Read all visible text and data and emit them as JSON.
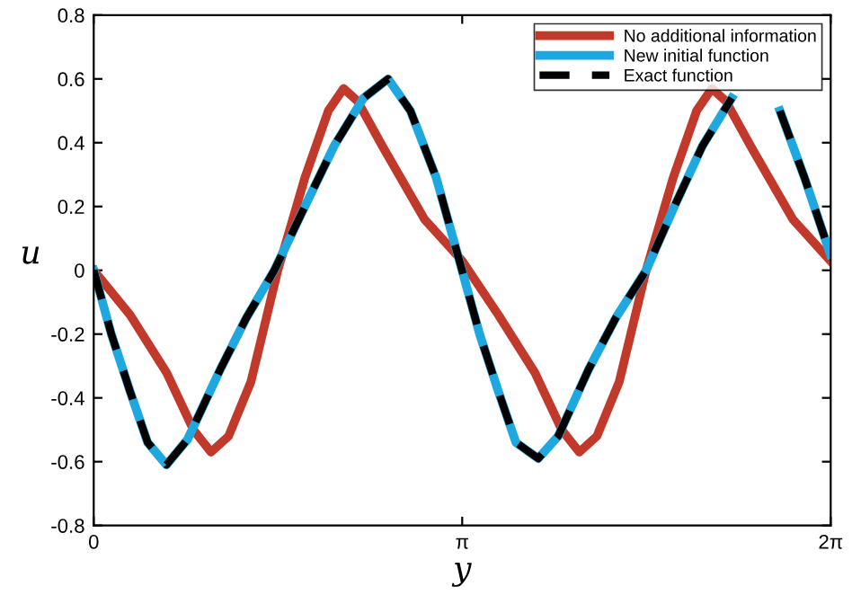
{
  "chart_data": {
    "type": "line",
    "xlabel": "y",
    "ylabel": "u",
    "xlim": [
      0,
      6.2832
    ],
    "ylim": [
      -0.8,
      0.8
    ],
    "xticks": [
      {
        "value": 0,
        "label": "0"
      },
      {
        "value": 3.1416,
        "label": "π"
      },
      {
        "value": 6.2832,
        "label": "2π"
      }
    ],
    "yticks": [
      {
        "value": -0.8,
        "label": "-0.8"
      },
      {
        "value": -0.6,
        "label": "-0.6"
      },
      {
        "value": -0.4,
        "label": "-0.4"
      },
      {
        "value": -0.2,
        "label": "-0.2"
      },
      0,
      0.2,
      0.4,
      0.6,
      0.8
    ],
    "legend": "top right",
    "grid": false,
    "series": [
      {
        "name": "No additional information",
        "color": "#c1392b",
        "line_style": "solid",
        "x": [
          0,
          0.31,
          0.62,
          0.85,
          1.0,
          1.15,
          1.34,
          1.57,
          1.8,
          2.0,
          2.13,
          2.25,
          2.46,
          2.82,
          3.14,
          3.45,
          3.76,
          3.99,
          4.14,
          4.29,
          4.48,
          4.71,
          4.94,
          5.14,
          5.27,
          5.39,
          5.6,
          5.96,
          6.28
        ],
        "values": [
          0,
          -0.14,
          -0.32,
          -0.5,
          -0.57,
          -0.52,
          -0.35,
          0,
          0.29,
          0.5,
          0.57,
          0.53,
          0.39,
          0.16,
          0.03,
          -0.14,
          -0.32,
          -0.5,
          -0.57,
          -0.52,
          -0.35,
          0,
          0.29,
          0.5,
          0.57,
          0.53,
          0.39,
          0.16,
          0.03
        ]
      },
      {
        "name": "New initial function",
        "color": "#1fa7e0",
        "line_style": "solid",
        "x": [
          0,
          0.15,
          0.31,
          0.46,
          0.62,
          0.8,
          1.08,
          1.3,
          1.54,
          1.8,
          2.05,
          2.3,
          2.51,
          2.7,
          2.92,
          3.14,
          3.29,
          3.45,
          3.6,
          3.79,
          3.96,
          4.22,
          4.45,
          4.71,
          4.95,
          5.19,
          5.44,
          5.65,
          5.85,
          6.06,
          6.28
        ],
        "values": [
          0,
          -0.2,
          -0.38,
          -0.54,
          -0.61,
          -0.53,
          -0.31,
          -0.15,
          0,
          0.2,
          0.39,
          0.54,
          0.6,
          0.5,
          0.29,
          0,
          -0.2,
          -0.38,
          -0.54,
          -0.59,
          -0.52,
          -0.31,
          -0.15,
          0,
          0.2,
          0.39,
          0.54,
          null,
          0.5,
          0.29,
          0.05
        ]
      },
      {
        "name": "Exact function",
        "color": "#000000",
        "line_style": "dashed",
        "x": [
          0,
          0.15,
          0.31,
          0.46,
          0.62,
          0.8,
          1.08,
          1.3,
          1.54,
          1.8,
          2.05,
          2.3,
          2.51,
          2.7,
          2.92,
          3.14,
          3.29,
          3.45,
          3.6,
          3.79,
          3.96,
          4.22,
          4.45,
          4.71,
          4.95,
          5.19,
          5.44,
          5.65,
          5.85,
          6.06,
          6.28
        ],
        "values": [
          0,
          -0.2,
          -0.38,
          -0.54,
          -0.61,
          -0.53,
          -0.31,
          -0.15,
          0,
          0.2,
          0.39,
          0.54,
          0.6,
          0.5,
          0.29,
          0,
          -0.2,
          -0.38,
          -0.54,
          -0.59,
          -0.52,
          -0.31,
          -0.15,
          0,
          0.2,
          0.39,
          0.54,
          null,
          0.5,
          0.29,
          0.05
        ]
      }
    ]
  }
}
